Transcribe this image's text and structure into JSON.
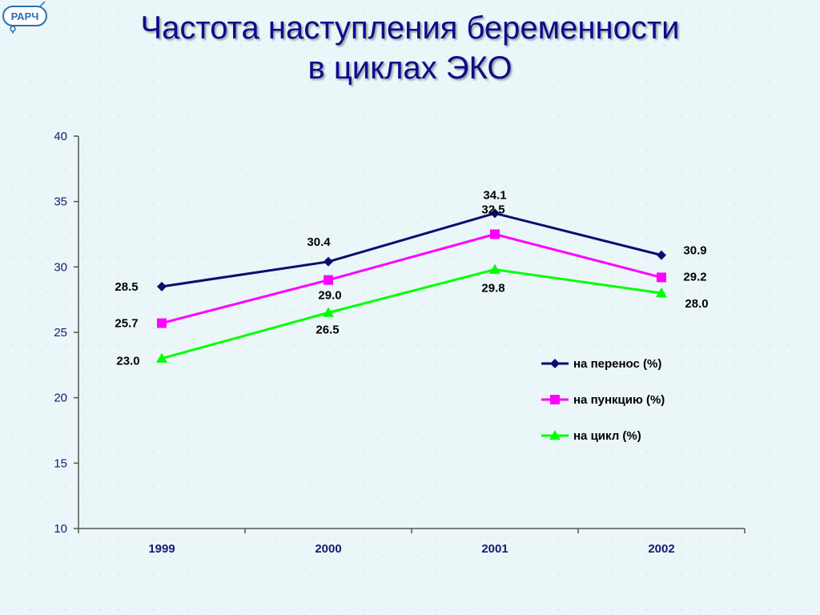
{
  "header": {
    "logo_text": "РАРЧ",
    "title_line1": "Частота наступления беременности",
    "title_line2": "в циклах ЭКО"
  },
  "chart_data": {
    "type": "line",
    "categories": [
      "1999",
      "2000",
      "2001",
      "2002"
    ],
    "series": [
      {
        "name": "на перенос (%)",
        "values": [
          28.5,
          30.4,
          34.1,
          30.9
        ],
        "labels": [
          "28.5",
          "30.4",
          "34.1",
          "30.9"
        ],
        "color": "#0c0c6e",
        "marker": "diamond"
      },
      {
        "name": "на пункцию (%)",
        "values": [
          25.7,
          29.0,
          32.5,
          29.2
        ],
        "labels": [
          "25.7",
          "29.0",
          "32.5",
          "29.2"
        ],
        "color": "#ff00ff",
        "marker": "square"
      },
      {
        "name": "на цикл (%)",
        "values": [
          23.0,
          26.5,
          29.8,
          28.0
        ],
        "labels": [
          "23.0",
          "26.5",
          "29.8",
          "28.0"
        ],
        "color": "#00ff00",
        "marker": "triangle"
      }
    ],
    "ylim": [
      10,
      40
    ],
    "yticks": [
      "10",
      "15",
      "20",
      "25",
      "30",
      "35",
      "40"
    ],
    "grid": false,
    "legend_position": "right"
  }
}
